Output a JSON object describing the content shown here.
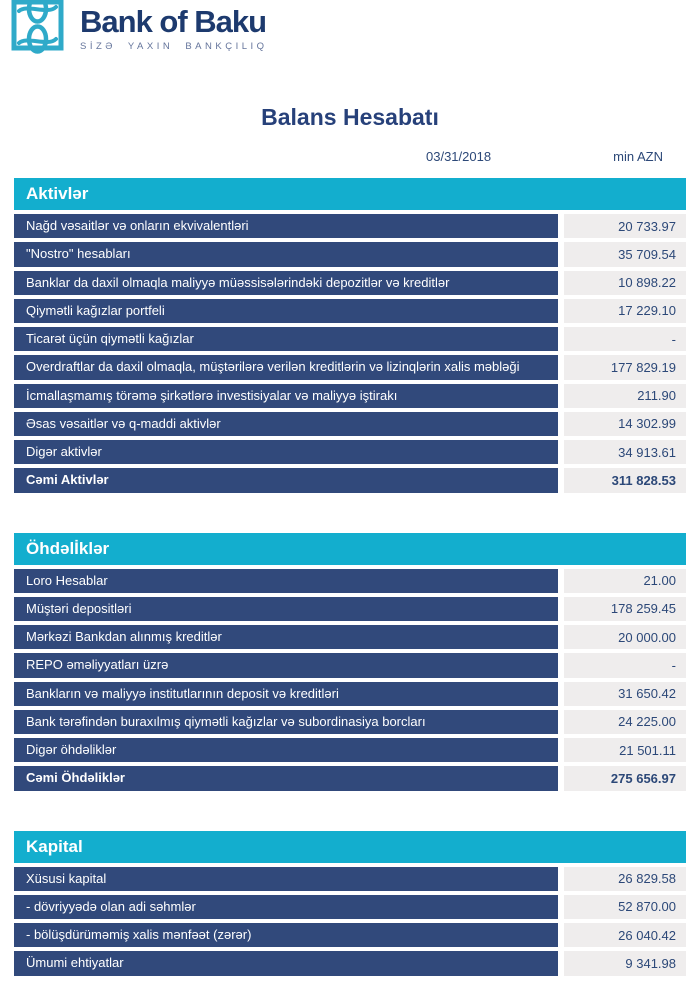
{
  "brand": {
    "name": "Bank of Baku",
    "tagline": "SİZƏ YAXIN BANKÇILIQ",
    "logo_icon": "chain-links-square-icon"
  },
  "report": {
    "title": "Balans Hesabatı",
    "date": "03/31/2018",
    "unit": "min AZN"
  },
  "colors": {
    "header_cyan": "#13aece",
    "row_navy": "#31497b",
    "value_bg": "#efeded",
    "navy_text": "#2c4878",
    "title_navy": "#27417a",
    "brand_navy": "#1d3a6e",
    "tagline_gray": "#64749b",
    "logo_teal": "#2faac9"
  },
  "sections": [
    {
      "title": "Aktivlər",
      "rows": [
        {
          "label": "Nağd vəsaitlər və onların ekvivalentləri",
          "value": "20 733.97",
          "total": false
        },
        {
          "label": "\"Nostro\" hesabları",
          "value": "35 709.54",
          "total": false
        },
        {
          "label": "Banklar da daxil olmaqla maliyyə müəssisələrindəki depozitlər və kreditlər",
          "value": "10 898.22",
          "total": false
        },
        {
          "label": "Qiymətli kağızlar portfeli",
          "value": "17 229.10",
          "total": false
        },
        {
          "label": "Ticarət üçün qiymətli kağızlar",
          "value": "-",
          "total": false
        },
        {
          "label": "Overdraftlar da daxil olmaqla, müştərilərə verilən kreditlərin və lizinqlərin xalis məbləği",
          "value": "177 829.19",
          "total": false
        },
        {
          "label": "İcmallaşmamış törəmə şirkətlərə investisiyalar və maliyyə iştirakı",
          "value": "211.90",
          "total": false
        },
        {
          "label": "Əsas vəsaitlər və q-maddi aktivlər",
          "value": "14 302.99",
          "total": false
        },
        {
          "label": "Digər aktivlər",
          "value": "34 913.61",
          "total": false
        },
        {
          "label": "Cəmi Aktivlər",
          "value": "311 828.53",
          "total": true
        }
      ]
    },
    {
      "title": "Öhdəlİklər",
      "rows": [
        {
          "label": "Loro Hesablar",
          "value": "21.00",
          "total": false
        },
        {
          "label": "Müştəri depositləri",
          "value": "178 259.45",
          "total": false
        },
        {
          "label": "Mərkəzi Bankdan alınmış kreditlər",
          "value": "20 000.00",
          "total": false
        },
        {
          "label": "REPO əməliyyatları üzrə",
          "value": "-",
          "total": false
        },
        {
          "label": "Bankların və maliyyə institutlarının deposit və kreditləri",
          "value": "31 650.42",
          "total": false
        },
        {
          "label": "Bank tərəfindən buraxılmış qiymətli kağızlar və subordinasiya borcları",
          "value": "24 225.00",
          "total": false
        },
        {
          "label": "Digər öhdəliklər",
          "value": "21 501.11",
          "total": false
        },
        {
          "label": "Cəmi Öhdəliklər",
          "value": "275 656.97",
          "total": true
        }
      ]
    },
    {
      "title": "Kapital",
      "rows": [
        {
          "label": "Xüsusi kapital",
          "value": "26 829.58",
          "total": false
        },
        {
          "label": "- dövriyyədə olan adi səhmlər",
          "value": "52 870.00",
          "total": false
        },
        {
          "label": "- bölüşdürüməmiş xalis mənfəət (zərər)",
          "value": "26 040.42",
          "total": false
        },
        {
          "label": "Ümumi ehtiyatlar",
          "value": "9 341.98",
          "total": false
        }
      ]
    }
  ]
}
